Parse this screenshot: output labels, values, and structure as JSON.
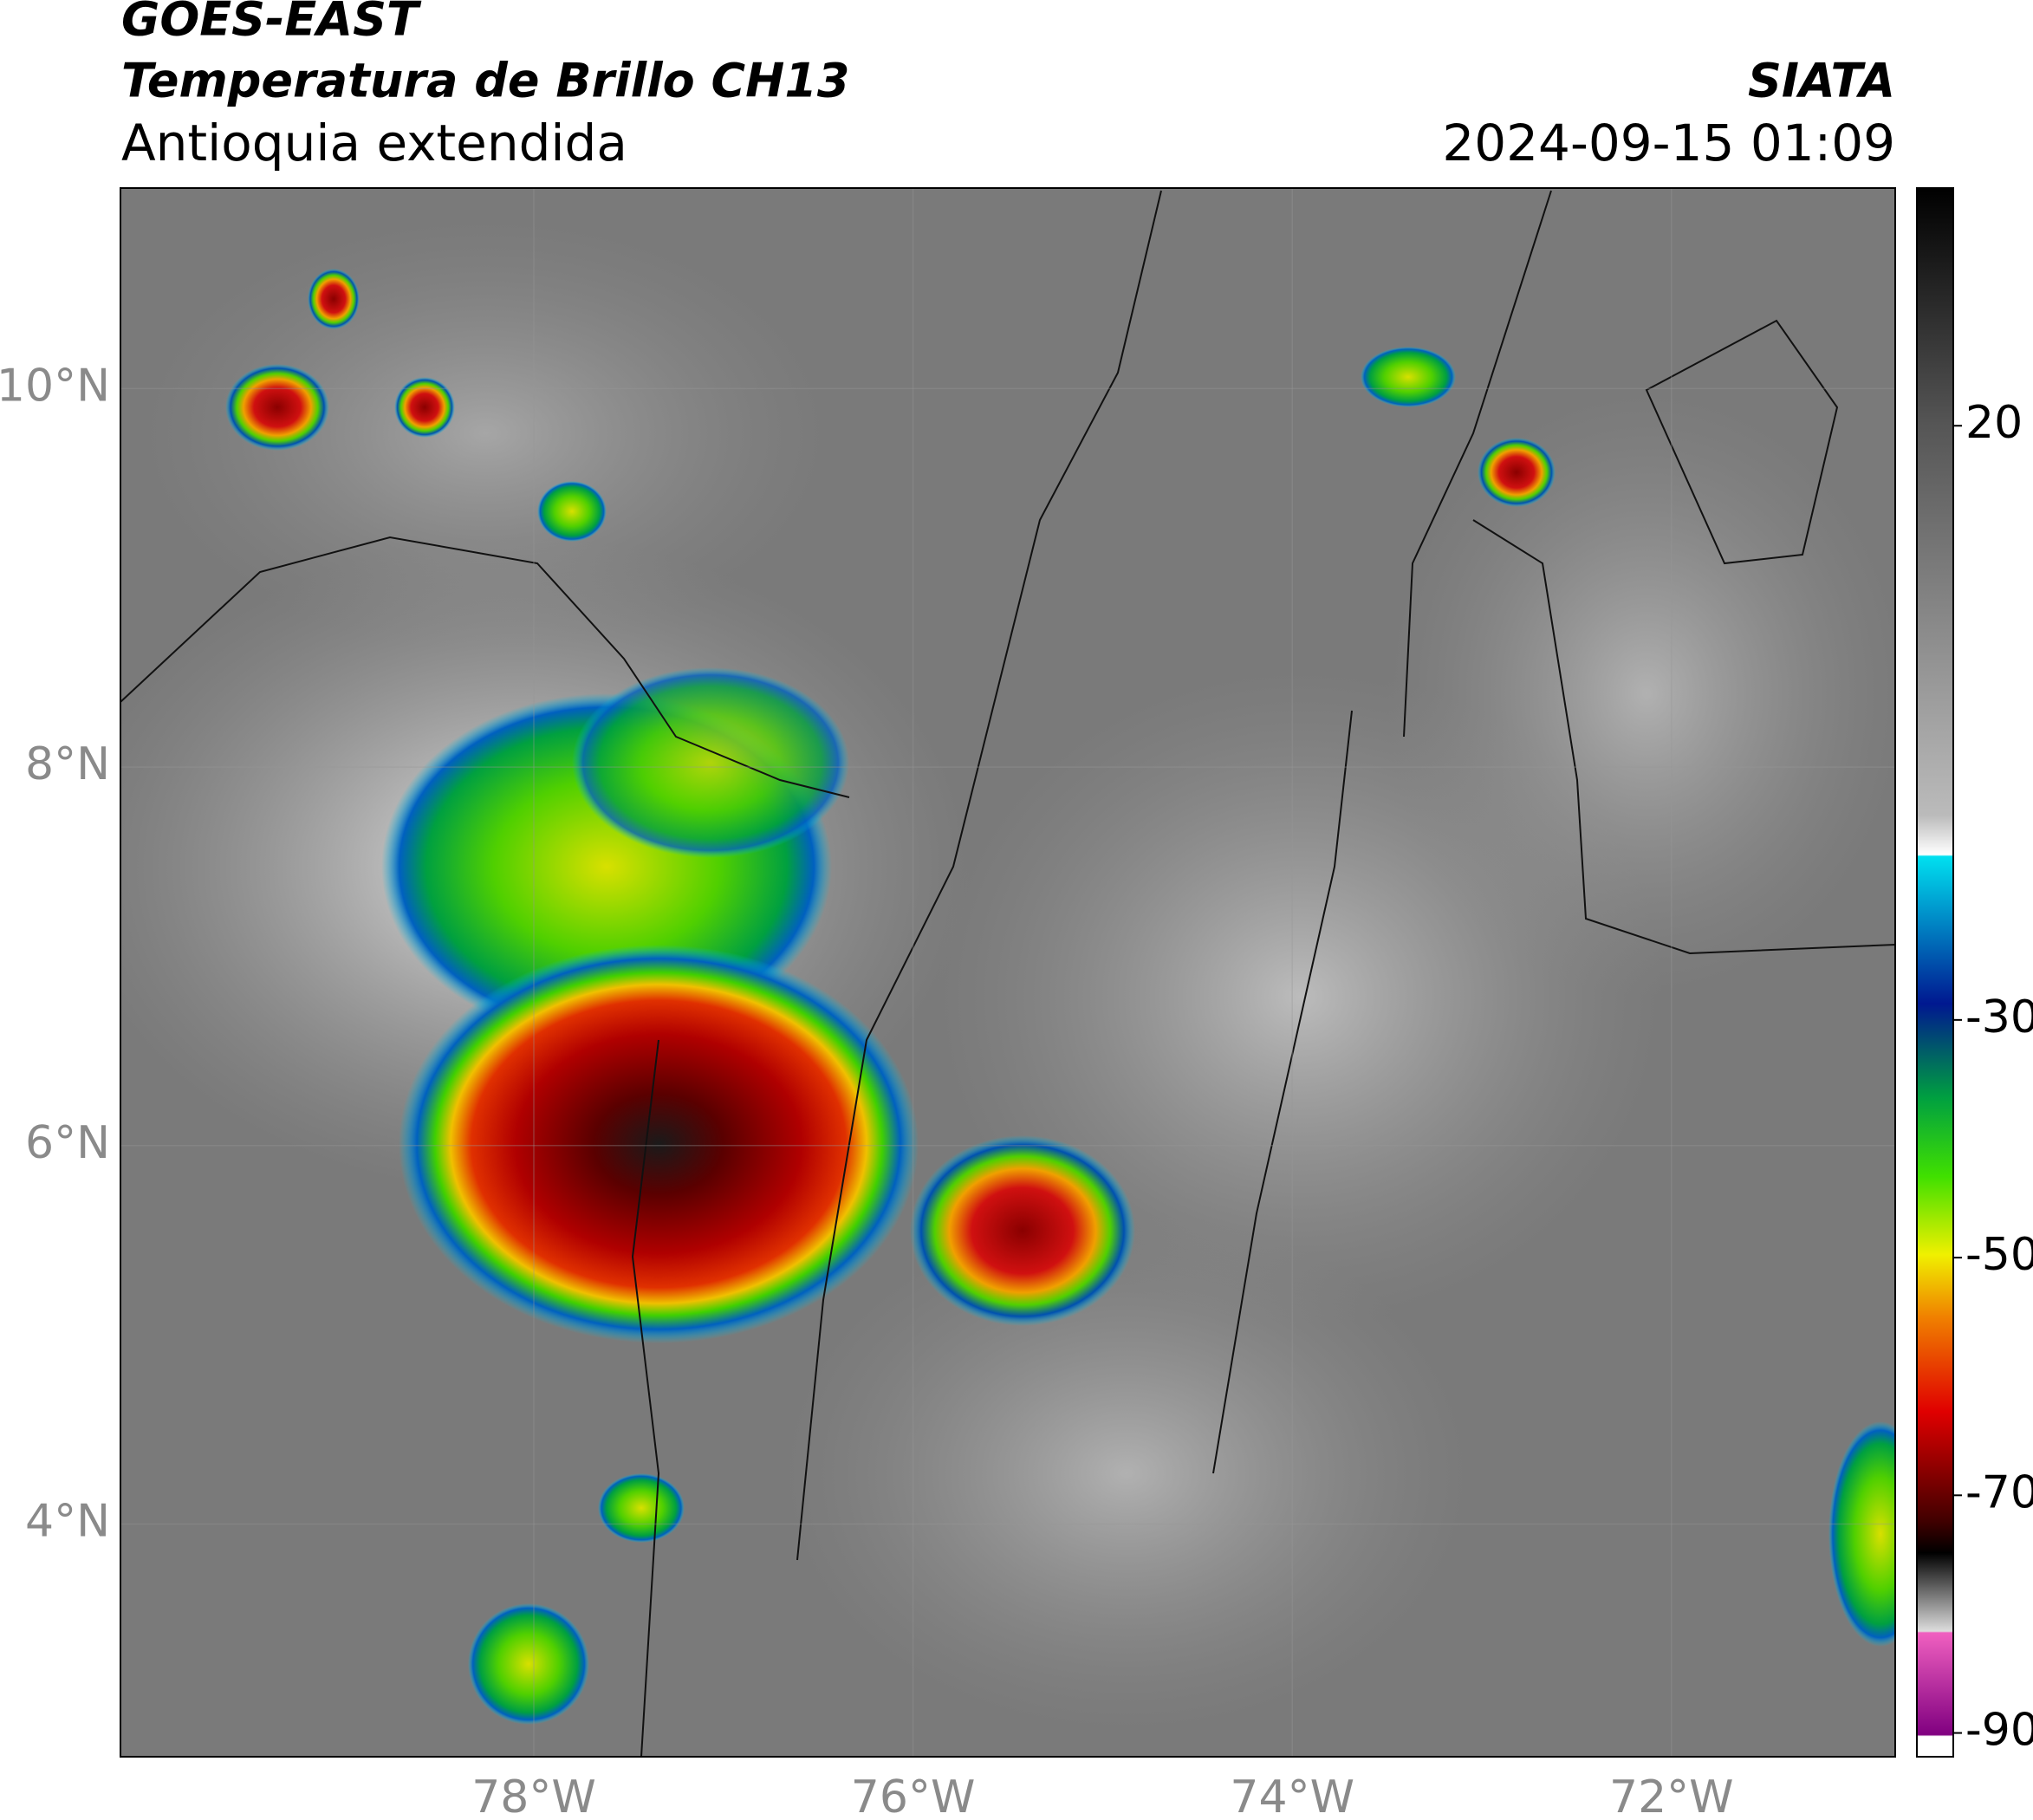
{
  "header": {
    "source": "GOES-EAST",
    "product": "Temperatura de Brillo CH13",
    "region": "Antioquia extendida",
    "agency": "SIATA",
    "datetime": "2024-09-15 01:09"
  },
  "map": {
    "xlim": [
      -80.18,
      -70.82
    ],
    "ylim": [
      2.77,
      11.06
    ],
    "xticks": [
      {
        "value": -78,
        "label": "78°W"
      },
      {
        "value": -76,
        "label": "76°W"
      },
      {
        "value": -74,
        "label": "74°W"
      },
      {
        "value": -72,
        "label": "72°W"
      }
    ],
    "yticks": [
      {
        "value": 4,
        "label": "4°N"
      },
      {
        "value": 6,
        "label": "6°N"
      },
      {
        "value": 8,
        "label": "8°N"
      },
      {
        "value": 10,
        "label": "10°N"
      }
    ]
  },
  "colorbar": {
    "ylim": [
      -92,
      40
    ],
    "yticks": [
      20,
      -30,
      -50,
      -70,
      -90
    ]
  }
}
